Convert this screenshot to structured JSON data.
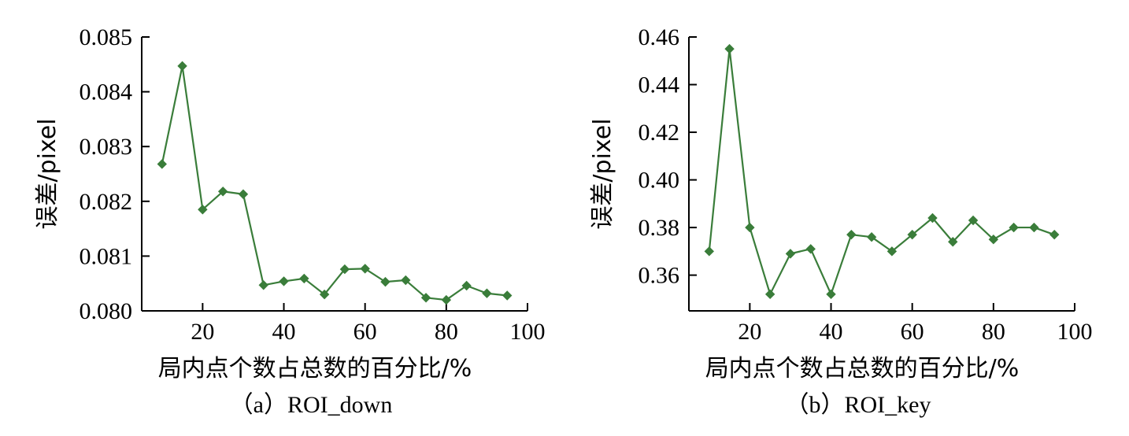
{
  "chart_data": [
    {
      "type": "line",
      "caption": "（a）ROI_down",
      "xlabel": "局内点个数占总数的百分比/%",
      "ylabel": "误差/pixel",
      "xlim": [
        5,
        100
      ],
      "ylim": [
        0.08,
        0.085
      ],
      "xticks": [
        20,
        40,
        60,
        80,
        100
      ],
      "xtick_labels": [
        "20",
        "40",
        "60",
        "80",
        "100"
      ],
      "yticks": [
        0.08,
        0.081,
        0.082,
        0.083,
        0.084,
        0.085
      ],
      "ytick_labels": [
        "0.080",
        "0.081",
        "0.082",
        "0.083",
        "0.084",
        "0.085"
      ],
      "grid": false,
      "series": [
        {
          "color": "#3a7d3a",
          "marker": "diamond",
          "x": [
            10,
            15,
            20,
            25,
            30,
            35,
            40,
            45,
            50,
            55,
            60,
            65,
            70,
            75,
            80,
            85,
            90,
            95
          ],
          "y": [
            0.08268,
            0.08447,
            0.08185,
            0.08218,
            0.08213,
            0.08047,
            0.08054,
            0.08059,
            0.0803,
            0.08076,
            0.08077,
            0.08053,
            0.08056,
            0.08024,
            0.0802,
            0.08046,
            0.08032,
            0.08028
          ]
        }
      ]
    },
    {
      "type": "line",
      "caption": "（b）ROI_key",
      "xlabel": "局内点个数占总数的百分比/%",
      "ylabel": "误差/pixel",
      "xlim": [
        5,
        100
      ],
      "ylim": [
        0.345,
        0.46
      ],
      "xticks": [
        20,
        40,
        60,
        80,
        100
      ],
      "xtick_labels": [
        "20",
        "40",
        "60",
        "80",
        "100"
      ],
      "yticks": [
        0.36,
        0.38,
        0.4,
        0.42,
        0.44,
        0.46
      ],
      "ytick_labels": [
        "0.36",
        "0.38",
        "0.40",
        "0.42",
        "0.44",
        "0.46"
      ],
      "grid": false,
      "series": [
        {
          "color": "#3a7d3a",
          "marker": "diamond",
          "x": [
            10,
            15,
            20,
            25,
            30,
            35,
            40,
            45,
            50,
            55,
            60,
            65,
            70,
            75,
            80,
            85,
            90,
            95
          ],
          "y": [
            0.37,
            0.455,
            0.38,
            0.352,
            0.369,
            0.371,
            0.352,
            0.377,
            0.376,
            0.37,
            0.377,
            0.384,
            0.374,
            0.383,
            0.375,
            0.38,
            0.38,
            0.377
          ]
        }
      ]
    }
  ]
}
